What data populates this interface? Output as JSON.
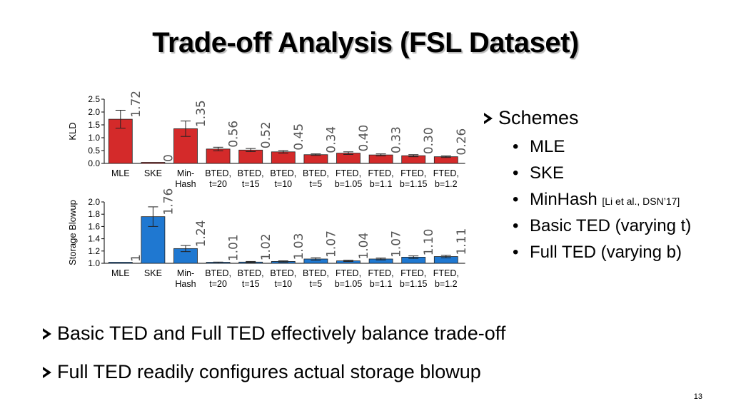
{
  "title": "Trade-off Analysis (FSL Dataset)",
  "schemes": {
    "heading": "Schemes",
    "items": [
      {
        "label": "MLE",
        "cite": ""
      },
      {
        "label": "SKE",
        "cite": ""
      },
      {
        "label": "MinHash",
        "cite": "[Li et al., DSN’17]"
      },
      {
        "label": "Basic TED (varying t)",
        "cite": ""
      },
      {
        "label": "Full TED (varying b)",
        "cite": ""
      }
    ]
  },
  "bullets": [
    "Basic TED and Full TED effectively balance trade-off",
    "Full TED readily configures actual storage blowup"
  ],
  "page_number": "13",
  "colors": {
    "kld_bar": "#d42a2a",
    "blowup_bar": "#1f78d1"
  },
  "chart_data": [
    {
      "type": "bar",
      "categories": [
        [
          "MLE"
        ],
        [
          "SKE"
        ],
        [
          "Min-",
          "Hash"
        ],
        [
          "BTED,",
          "t=20"
        ],
        [
          "BTED,",
          "t=15"
        ],
        [
          "BTED,",
          "t=10"
        ],
        [
          "BTED,",
          "t=5"
        ],
        [
          "FTED,",
          "b=1.05"
        ],
        [
          "FTED,",
          "b=1.1"
        ],
        [
          "FTED,",
          "b=1.15"
        ],
        [
          "FTED,",
          "b=1.2"
        ]
      ],
      "values": [
        1.72,
        0,
        1.35,
        0.56,
        0.52,
        0.45,
        0.34,
        0.4,
        0.33,
        0.3,
        0.26
      ],
      "value_labels": [
        "1.72",
        "0",
        "1.35",
        "0.56",
        "0.52",
        "0.45",
        "0.34",
        "0.40",
        "0.33",
        "0.30",
        "0.26"
      ],
      "errors": [
        0.35,
        0,
        0.3,
        0.07,
        0.06,
        0.05,
        0.03,
        0.05,
        0.04,
        0.04,
        0.03
      ],
      "ylabel": "KLD",
      "ylim": [
        0,
        2.5
      ],
      "yticks": [
        "0.0",
        "0.5",
        "1.0",
        "1.5",
        "2.0",
        "2.5"
      ],
      "ytick_values": [
        0,
        0.5,
        1.0,
        1.5,
        2.0,
        2.5
      ]
    },
    {
      "type": "bar",
      "categories": [
        [
          "MLE"
        ],
        [
          "SKE"
        ],
        [
          "Min-",
          "Hash"
        ],
        [
          "BTED,",
          "t=20"
        ],
        [
          "BTED,",
          "t=15"
        ],
        [
          "BTED,",
          "t=10"
        ],
        [
          "BTED,",
          "t=5"
        ],
        [
          "FTED,",
          "b=1.05"
        ],
        [
          "FTED,",
          "b=1.1"
        ],
        [
          "FTED,",
          "b=1.15"
        ],
        [
          "FTED,",
          "b=1.2"
        ]
      ],
      "values": [
        1.0,
        1.76,
        1.24,
        1.01,
        1.02,
        1.03,
        1.07,
        1.04,
        1.07,
        1.1,
        1.11
      ],
      "value_labels": [
        "1",
        "1.76",
        "1.24",
        "1.01",
        "1.02",
        "1.03",
        "1.07",
        "1.04",
        "1.07",
        "1.10",
        "1.11"
      ],
      "errors": [
        0,
        0.16,
        0.05,
        0.01,
        0.01,
        0.01,
        0.02,
        0.01,
        0.015,
        0.02,
        0.02
      ],
      "ylabel": "Storage Blowup",
      "ylim": [
        1.0,
        2.0
      ],
      "yticks": [
        "1.0",
        "1.2",
        "1.4",
        "1.6",
        "1.8",
        "2.0"
      ],
      "ytick_values": [
        1.0,
        1.2,
        1.4,
        1.6,
        1.8,
        2.0
      ]
    }
  ]
}
